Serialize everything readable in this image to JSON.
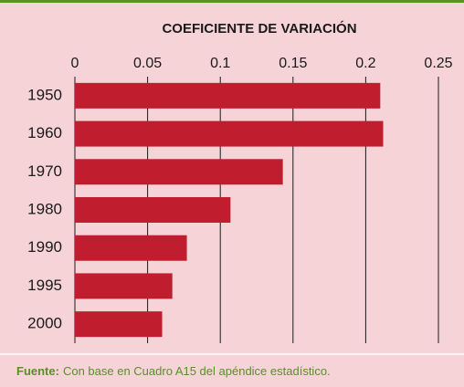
{
  "chart_data": {
    "type": "bar",
    "orientation": "horizontal",
    "title": "COEFICIENTE DE VARIACIÓN",
    "categories": [
      "1950",
      "1960",
      "1970",
      "1980",
      "1990",
      "1995",
      "2000"
    ],
    "values": [
      0.21,
      0.212,
      0.143,
      0.107,
      0.077,
      0.067,
      0.06
    ],
    "color": "#c01e2e",
    "xlim": [
      0,
      0.25
    ],
    "xticks": [
      0,
      0.05,
      0.1,
      0.15,
      0.2,
      0.25
    ],
    "grid": true,
    "source_label": "Fuente:",
    "source": "Con base en Cuadro A15 del apéndice estadístico."
  }
}
